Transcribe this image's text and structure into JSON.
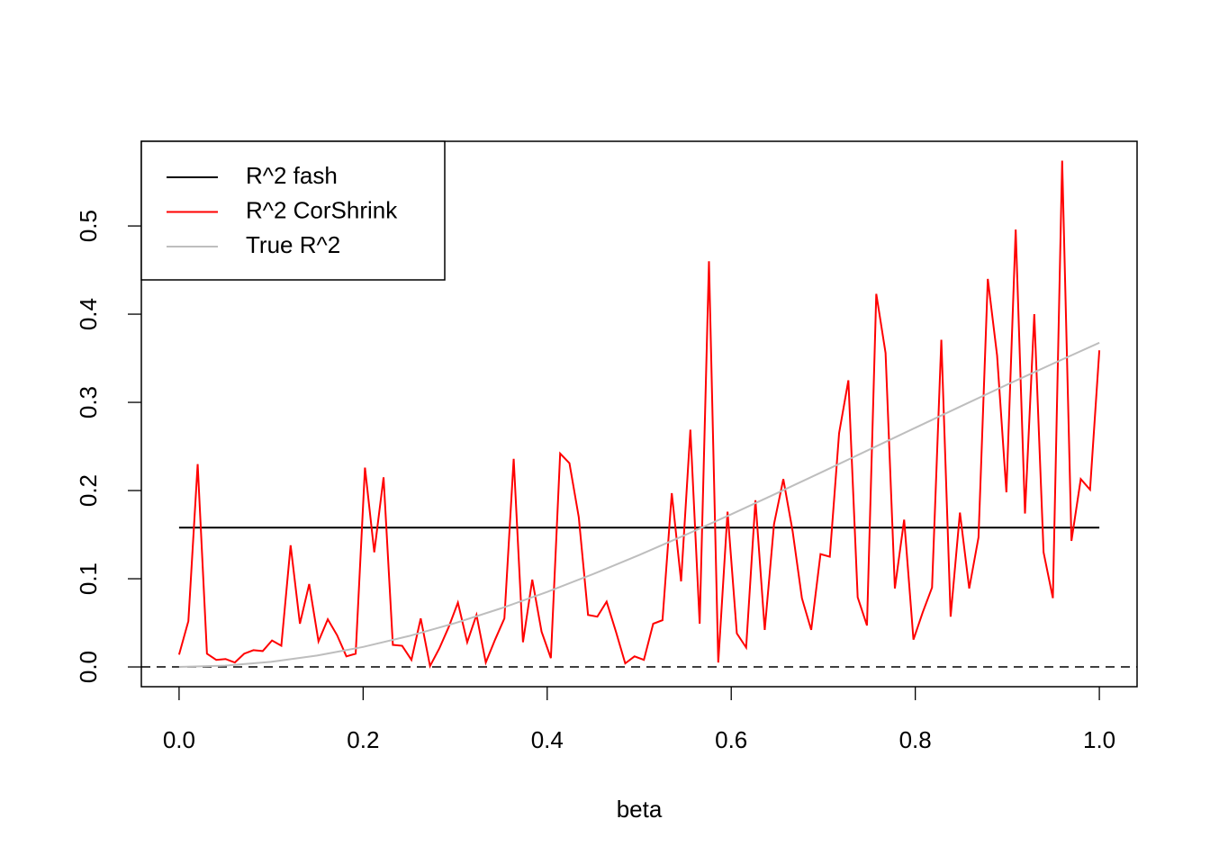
{
  "chart_data": {
    "type": "line",
    "xlabel": "beta",
    "xlim": [
      -0.041,
      1.041
    ],
    "ylim": [
      -0.0224,
      0.596
    ],
    "xticks": [
      {
        "value": 0,
        "label": "0.0"
      },
      {
        "value": 0.2,
        "label": "0.2"
      },
      {
        "value": 0.4,
        "label": "0.4"
      },
      {
        "value": 0.6,
        "label": "0.6"
      },
      {
        "value": 0.8,
        "label": "0.8"
      },
      {
        "value": 1,
        "label": "1.0"
      }
    ],
    "yticks": [
      {
        "value": 0,
        "label": "0.0"
      },
      {
        "value": 0.1,
        "label": "0.1"
      },
      {
        "value": 0.2,
        "label": "0.2"
      },
      {
        "value": 0.3,
        "label": "0.3"
      },
      {
        "value": 0.4,
        "label": "0.4"
      },
      {
        "value": 0.5,
        "label": "0.5"
      }
    ],
    "reference_line": 0,
    "legend": "top-left",
    "series": [
      {
        "name": "R^2 fash",
        "color": "#000000",
        "x": [
          0,
          1
        ],
        "values": [
          0.158,
          0.158
        ]
      },
      {
        "name": "R^2 CorShrink",
        "color": "#ff0000",
        "x": [
          0,
          0.0101,
          0.0202,
          0.0303,
          0.0404,
          0.0505,
          0.0606,
          0.0707,
          0.0808,
          0.0909,
          0.101,
          0.1111,
          0.1212,
          0.1313,
          0.1414,
          0.1515,
          0.1616,
          0.1717,
          0.1818,
          0.1919,
          0.202,
          0.2121,
          0.2222,
          0.2323,
          0.2424,
          0.2525,
          0.2626,
          0.2727,
          0.2828,
          0.2929,
          0.303,
          0.3131,
          0.3232,
          0.3333,
          0.3434,
          0.3535,
          0.3636,
          0.3737,
          0.3838,
          0.3939,
          0.404,
          0.4141,
          0.4242,
          0.4343,
          0.4444,
          0.4545,
          0.4646,
          0.4747,
          0.4848,
          0.4949,
          0.5051,
          0.5152,
          0.5253,
          0.5354,
          0.5455,
          0.5556,
          0.5657,
          0.5758,
          0.5859,
          0.596,
          0.6061,
          0.6162,
          0.6263,
          0.6364,
          0.6465,
          0.6566,
          0.6667,
          0.6768,
          0.6869,
          0.697,
          0.7071,
          0.7172,
          0.7273,
          0.7374,
          0.7475,
          0.7576,
          0.7677,
          0.7778,
          0.7879,
          0.798,
          0.8081,
          0.8182,
          0.8283,
          0.8384,
          0.8485,
          0.8586,
          0.8687,
          0.8788,
          0.8889,
          0.899,
          0.9091,
          0.9192,
          0.9293,
          0.9394,
          0.9495,
          0.9596,
          0.9697,
          0.9798,
          0.9899,
          1
        ],
        "values": [
          0.014,
          0.052,
          0.23,
          0.015,
          0.008,
          0.009,
          0.005,
          0.015,
          0.019,
          0.018,
          0.03,
          0.024,
          0.138,
          0.049,
          0.094,
          0.029,
          0.054,
          0.036,
          0.012,
          0.015,
          0.226,
          0.13,
          0.215,
          0.025,
          0.024,
          0.008,
          0.055,
          0.001,
          0.021,
          0.045,
          0.073,
          0.028,
          0.059,
          0.005,
          0.031,
          0.055,
          0.236,
          0.028,
          0.099,
          0.04,
          0.01,
          0.242,
          0.231,
          0.17,
          0.059,
          0.057,
          0.074,
          0.04,
          0.004,
          0.012,
          0.008,
          0.049,
          0.053,
          0.197,
          0.097,
          0.269,
          0.049,
          0.46,
          0.005,
          0.176,
          0.038,
          0.022,
          0.189,
          0.042,
          0.162,
          0.213,
          0.154,
          0.078,
          0.042,
          0.128,
          0.125,
          0.265,
          0.325,
          0.079,
          0.047,
          0.423,
          0.356,
          0.089,
          0.167,
          0.031,
          0.062,
          0.09,
          0.371,
          0.057,
          0.175,
          0.089,
          0.147,
          0.44,
          0.353,
          0.198,
          0.496,
          0.174,
          0.4,
          0.13,
          0.078,
          0.574,
          0.143,
          0.213,
          0.201,
          0.359
        ]
      },
      {
        "name": "True R^2",
        "color": "#bebebe",
        "x": [
          0,
          0.05,
          0.1,
          0.15,
          0.2,
          0.25,
          0.3,
          0.35,
          0.4,
          0.45,
          0.5,
          0.55,
          0.6,
          0.65,
          0.7,
          0.75,
          0.8,
          0.85,
          0.9,
          0.95,
          1
        ],
        "values": [
          0,
          0.00145,
          0.00578,
          0.0129,
          0.0227,
          0.0351,
          0.0497,
          0.0665,
          0.0851,
          0.1053,
          0.1269,
          0.1496,
          0.1731,
          0.1972,
          0.2217,
          0.2464,
          0.2712,
          0.2958,
          0.3202,
          0.3441,
          0.3676
        ]
      }
    ]
  }
}
